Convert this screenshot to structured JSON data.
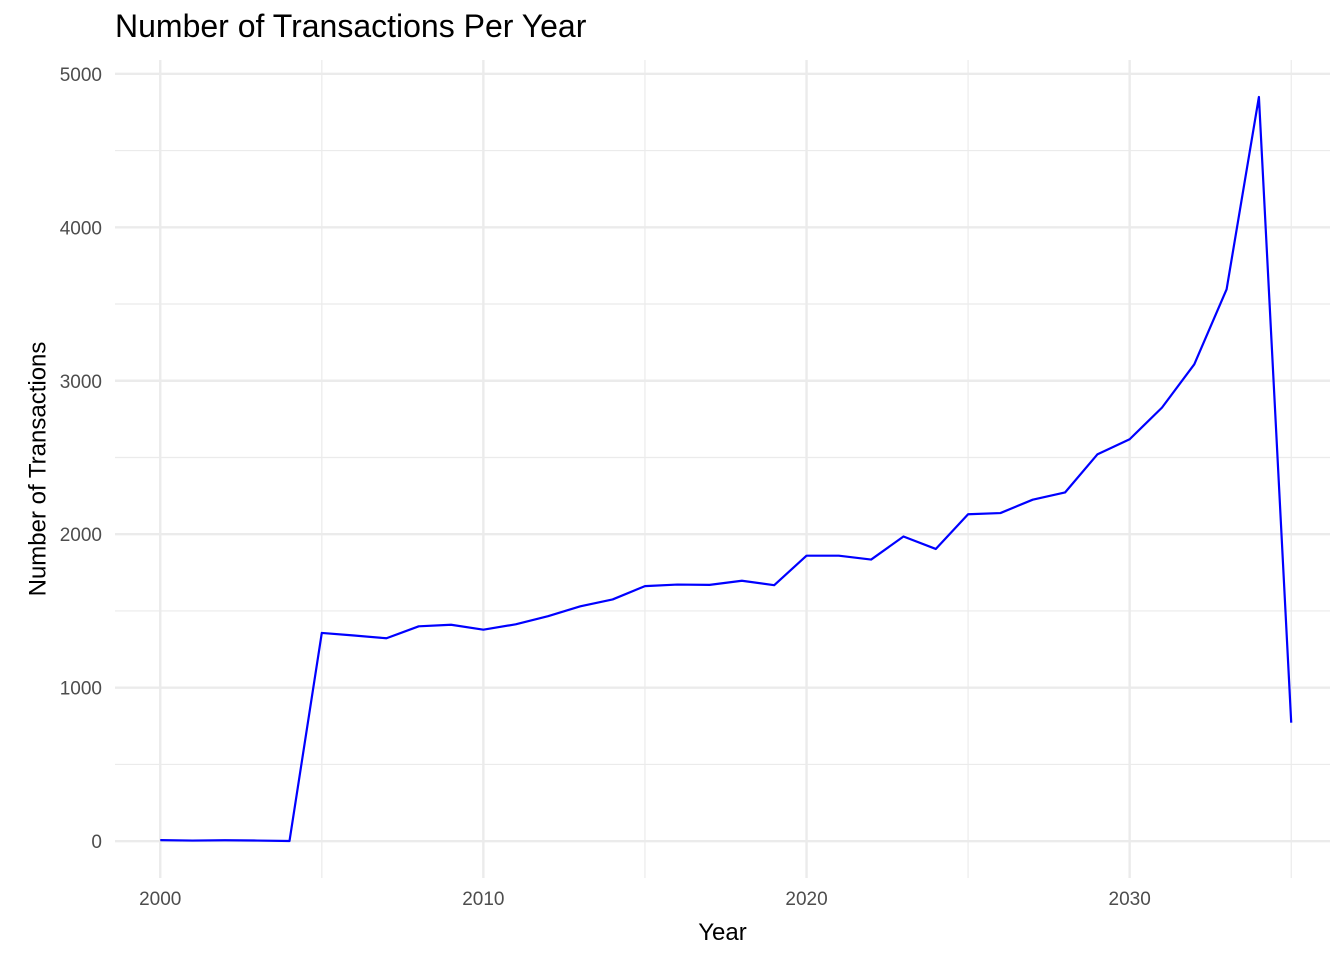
{
  "chart_data": {
    "type": "line",
    "title": "Number of Transactions Per Year",
    "xlabel": "Year",
    "ylabel": "Number of Transactions",
    "xlim": [
      1998.6,
      2036.2
    ],
    "ylim": [
      -240,
      5090
    ],
    "x_ticks": [
      2000,
      2010,
      2020,
      2030
    ],
    "y_ticks": [
      0,
      1000,
      2000,
      3000,
      4000,
      5000
    ],
    "grid": true,
    "line_color": "#0000ff",
    "grid_color": "#ebebeb",
    "series": [
      {
        "x": [
          2000,
          2001,
          2002,
          2003,
          2004,
          2005,
          2006,
          2007,
          2008,
          2009,
          2010,
          2011,
          2012,
          2013,
          2014,
          2015,
          2016,
          2017,
          2018,
          2019,
          2020,
          2021,
          2022,
          2023,
          2024,
          2025,
          2026,
          2027,
          2028,
          2029,
          2030,
          2031,
          2032,
          2033,
          2034,
          2035
        ],
        "y": [
          7,
          4,
          6,
          4,
          1,
          1357,
          1340,
          1322,
          1400,
          1410,
          1378,
          1413,
          1466,
          1530,
          1575,
          1662,
          1672,
          1670,
          1697,
          1668,
          1860,
          1860,
          1835,
          1985,
          1904,
          2130,
          2138,
          2225,
          2272,
          2520,
          2619,
          2825,
          3107,
          3596,
          4849,
          772
        ]
      }
    ]
  }
}
